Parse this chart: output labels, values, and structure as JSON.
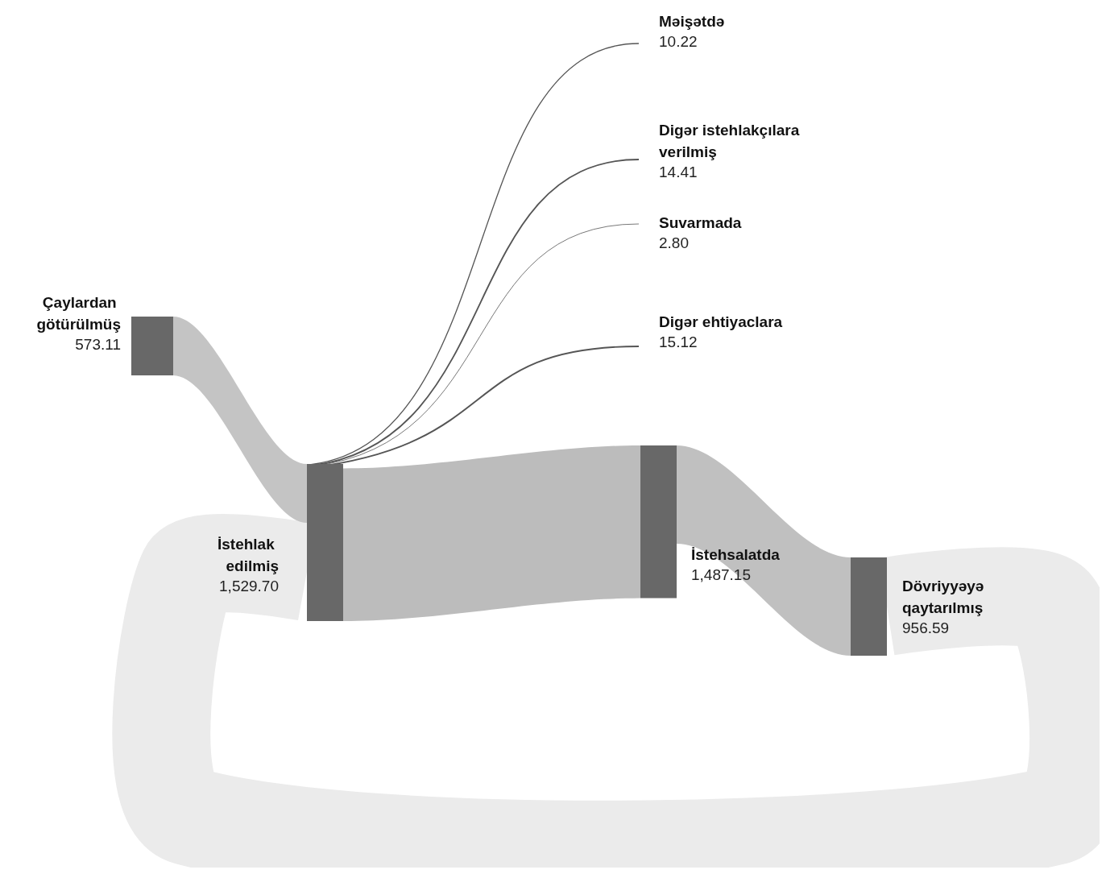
{
  "chart_data": {
    "type": "other",
    "categories": [
      "Çaylardan götürülmüş",
      "İstehlak edilmiş",
      "İstehsalatda",
      "Məişətdə",
      "Digər istehlakçılara verilmiş",
      "Suvarmada",
      "Digər ehtiyaclara",
      "Dövriyyəyə qaytarılmış"
    ],
    "values": [
      573.11,
      1529.7,
      1487.15,
      10.22,
      14.41,
      2.8,
      15.12,
      956.59
    ],
    "value_labels": [
      "573.11",
      "1,529.70",
      "1,487.15",
      "10.22",
      "14.41",
      "2.80",
      "15.12",
      "956.59"
    ]
  }
}
